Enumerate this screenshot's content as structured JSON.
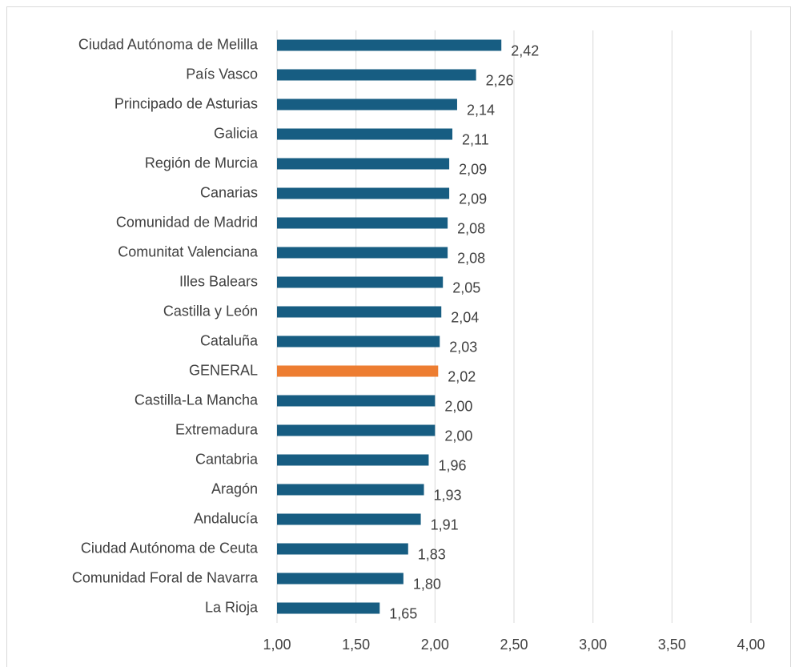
{
  "chart_data": {
    "type": "bar",
    "orientation": "horizontal",
    "categories": [
      "Ciudad Autónoma de Melilla",
      "País Vasco",
      "Principado de Asturias",
      "Galicia",
      "Región de Murcia",
      "Canarias",
      "Comunidad de Madrid",
      "Comunitat Valenciana",
      "Illes Balears",
      "Castilla y León",
      "Cataluña",
      "GENERAL",
      "Castilla-La Mancha",
      "Extremadura",
      "Cantabria",
      "Aragón",
      "Andalucía",
      "Ciudad Autónoma de Ceuta",
      "Comunidad Foral de Navarra",
      "La Rioja"
    ],
    "values": [
      2.42,
      2.26,
      2.14,
      2.11,
      2.09,
      2.09,
      2.08,
      2.08,
      2.05,
      2.04,
      2.03,
      2.02,
      2.0,
      2.0,
      1.96,
      1.93,
      1.91,
      1.83,
      1.8,
      1.65
    ],
    "value_labels": [
      "2,42",
      "2,26",
      "2,14",
      "2,11",
      "2,09",
      "2,09",
      "2,08",
      "2,08",
      "2,05",
      "2,04",
      "2,03",
      "2,02",
      "2,00",
      "2,00",
      "1,96",
      "1,93",
      "1,91",
      "1,83",
      "1,80",
      "1,65"
    ],
    "colors": [
      "#175d82",
      "#175d82",
      "#175d82",
      "#175d82",
      "#175d82",
      "#175d82",
      "#175d82",
      "#175d82",
      "#175d82",
      "#175d82",
      "#175d82",
      "#ed7d31",
      "#175d82",
      "#175d82",
      "#175d82",
      "#175d82",
      "#175d82",
      "#175d82",
      "#175d82",
      "#175d82"
    ],
    "xlim": [
      1,
      4
    ],
    "xticks": [
      {
        "value": 1,
        "label": "1,00"
      },
      {
        "value": 1.5,
        "label": "1,50"
      },
      {
        "value": 2,
        "label": "2,00"
      },
      {
        "value": 2.5,
        "label": "2,50"
      },
      {
        "value": 3,
        "label": "3,00"
      },
      {
        "value": 3.5,
        "label": "3,50"
      },
      {
        "value": 4,
        "label": "4,00"
      }
    ],
    "grid": true
  }
}
